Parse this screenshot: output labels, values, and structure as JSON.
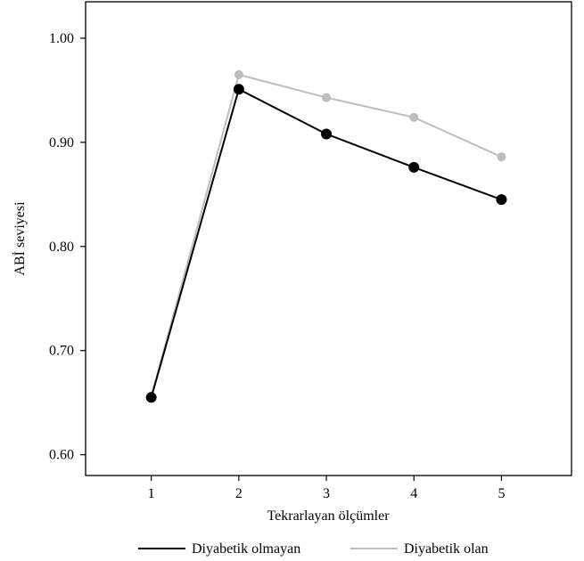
{
  "chart_data": {
    "type": "line",
    "title": "",
    "xlabel": "Tekrarlayan ölçümler",
    "ylabel": "ABİ seviyesi",
    "x": [
      1,
      2,
      3,
      4,
      5
    ],
    "xlim": [
      0.25,
      5.8
    ],
    "ylim": [
      0.58,
      1.035
    ],
    "y_ticks": [
      0.6,
      0.7,
      0.8,
      0.9,
      1.0
    ],
    "y_tick_labels": [
      "0.60",
      "0.70",
      "0.80",
      "0.90",
      "1.00"
    ],
    "x_tick_labels": [
      "1",
      "2",
      "3",
      "4",
      "5"
    ],
    "grid": false,
    "legend_position": "bottom",
    "series": [
      {
        "name": "Diyabetik olmayan",
        "color": "#000000",
        "values": [
          0.655,
          0.951,
          0.908,
          0.876,
          0.845
        ]
      },
      {
        "name": "Diyabetik olan",
        "color": "#bdbdbd",
        "values": [
          0.656,
          0.965,
          0.943,
          0.924,
          0.886
        ]
      }
    ]
  }
}
